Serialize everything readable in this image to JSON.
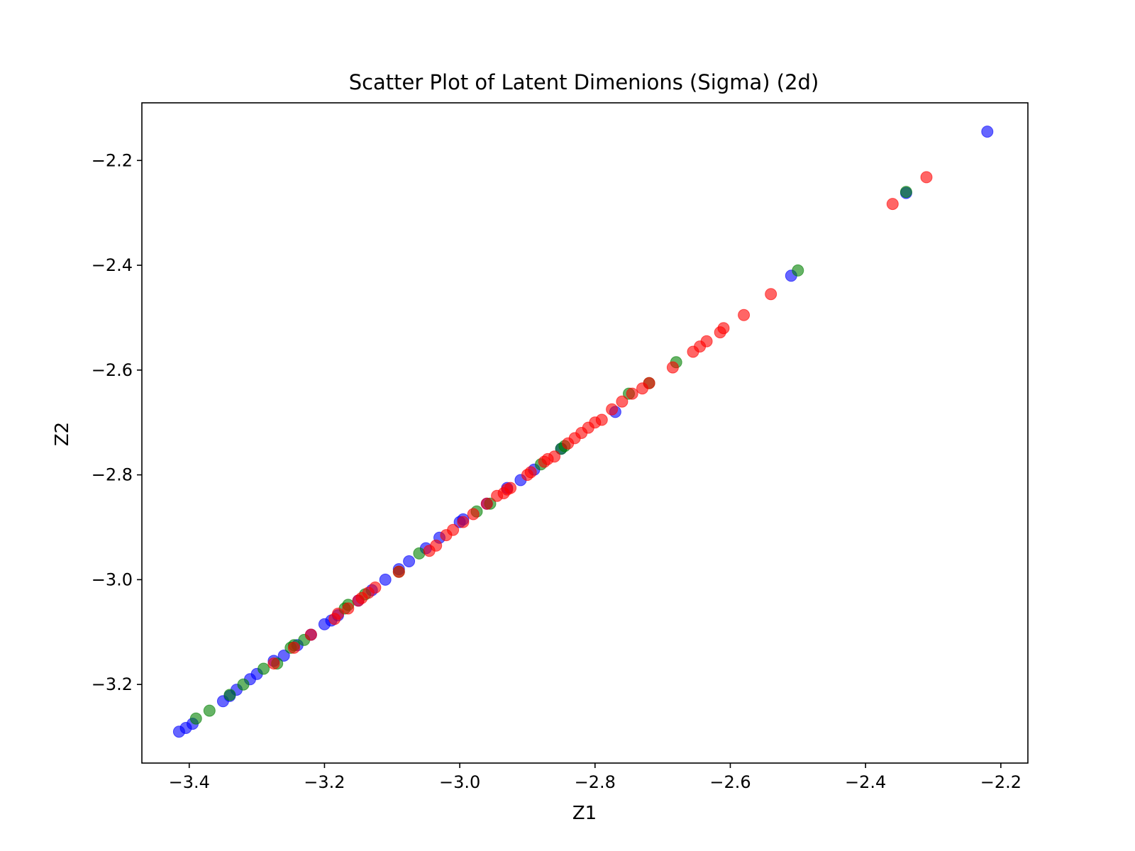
{
  "chart_data": {
    "type": "scatter",
    "title": "Scatter Plot of Latent Dimenions (Sigma) (2d)",
    "xlabel": "Z1",
    "ylabel": "Z2",
    "xlim": [
      -3.47,
      -2.16
    ],
    "ylim": [
      -3.35,
      -2.09
    ],
    "xticks": [
      -3.4,
      -3.2,
      -3.0,
      -2.8,
      -2.6,
      -2.4,
      -2.2
    ],
    "xtick_labels": [
      "−3.4",
      "−3.2",
      "−3.0",
      "−2.8",
      "−2.6",
      "−2.4",
      "−2.2"
    ],
    "yticks": [
      -2.2,
      -2.4,
      -2.6,
      -2.8,
      -3.0,
      -3.2
    ],
    "ytick_labels": [
      "−2.2",
      "−2.4",
      "−2.6",
      "−2.8",
      "−3.0",
      "−3.2"
    ],
    "grid": false,
    "legend": "none",
    "marker_opacity": 0.6,
    "series": [
      {
        "color": "#0000ff",
        "points": [
          [
            -3.415,
            -3.29
          ],
          [
            -3.405,
            -3.283
          ],
          [
            -3.395,
            -3.275
          ],
          [
            -3.35,
            -3.232
          ],
          [
            -3.34,
            -3.222
          ],
          [
            -3.33,
            -3.21
          ],
          [
            -3.31,
            -3.19
          ],
          [
            -3.3,
            -3.18
          ],
          [
            -3.275,
            -3.155
          ],
          [
            -3.26,
            -3.145
          ],
          [
            -3.24,
            -3.125
          ],
          [
            -3.22,
            -3.105
          ],
          [
            -3.2,
            -3.085
          ],
          [
            -3.19,
            -3.078
          ],
          [
            -3.18,
            -3.068
          ],
          [
            -3.15,
            -3.04
          ],
          [
            -3.13,
            -3.02
          ],
          [
            -3.11,
            -3.0
          ],
          [
            -3.09,
            -2.98
          ],
          [
            -3.075,
            -2.965
          ],
          [
            -3.05,
            -2.94
          ],
          [
            -3.03,
            -2.92
          ],
          [
            -3.0,
            -2.89
          ],
          [
            -2.995,
            -2.885
          ],
          [
            -2.96,
            -2.855
          ],
          [
            -2.93,
            -2.825
          ],
          [
            -2.91,
            -2.81
          ],
          [
            -2.89,
            -2.79
          ],
          [
            -2.85,
            -2.75
          ],
          [
            -2.77,
            -2.68
          ],
          [
            -2.51,
            -2.42
          ],
          [
            -2.34,
            -2.262
          ],
          [
            -2.22,
            -2.145
          ]
        ]
      },
      {
        "color": "#008000",
        "points": [
          [
            -3.39,
            -3.265
          ],
          [
            -3.37,
            -3.25
          ],
          [
            -3.34,
            -3.22
          ],
          [
            -3.32,
            -3.2
          ],
          [
            -3.29,
            -3.17
          ],
          [
            -3.27,
            -3.16
          ],
          [
            -3.25,
            -3.13
          ],
          [
            -3.245,
            -3.125
          ],
          [
            -3.23,
            -3.115
          ],
          [
            -3.17,
            -3.055
          ],
          [
            -3.165,
            -3.048
          ],
          [
            -3.14,
            -3.028
          ],
          [
            -3.09,
            -2.985
          ],
          [
            -3.06,
            -2.95
          ],
          [
            -2.975,
            -2.87
          ],
          [
            -2.955,
            -2.855
          ],
          [
            -2.88,
            -2.78
          ],
          [
            -2.85,
            -2.75
          ],
          [
            -2.845,
            -2.745
          ],
          [
            -2.75,
            -2.645
          ],
          [
            -2.72,
            -2.625
          ],
          [
            -2.68,
            -2.585
          ],
          [
            -2.5,
            -2.41
          ],
          [
            -2.34,
            -2.26
          ]
        ]
      },
      {
        "color": "#ff0000",
        "points": [
          [
            -3.275,
            -3.16
          ],
          [
            -3.245,
            -3.13
          ],
          [
            -3.22,
            -3.105
          ],
          [
            -3.185,
            -3.075
          ],
          [
            -3.18,
            -3.065
          ],
          [
            -3.165,
            -3.055
          ],
          [
            -3.15,
            -3.04
          ],
          [
            -3.145,
            -3.035
          ],
          [
            -3.135,
            -3.025
          ],
          [
            -3.125,
            -3.015
          ],
          [
            -3.09,
            -2.985
          ],
          [
            -3.045,
            -2.945
          ],
          [
            -3.035,
            -2.935
          ],
          [
            -3.02,
            -2.915
          ],
          [
            -3.01,
            -2.905
          ],
          [
            -2.995,
            -2.89
          ],
          [
            -2.98,
            -2.875
          ],
          [
            -2.96,
            -2.855
          ],
          [
            -2.945,
            -2.84
          ],
          [
            -2.935,
            -2.835
          ],
          [
            -2.93,
            -2.828
          ],
          [
            -2.925,
            -2.825
          ],
          [
            -2.9,
            -2.8
          ],
          [
            -2.895,
            -2.795
          ],
          [
            -2.875,
            -2.775
          ],
          [
            -2.87,
            -2.77
          ],
          [
            -2.86,
            -2.765
          ],
          [
            -2.84,
            -2.74
          ],
          [
            -2.83,
            -2.73
          ],
          [
            -2.82,
            -2.72
          ],
          [
            -2.81,
            -2.71
          ],
          [
            -2.8,
            -2.7
          ],
          [
            -2.79,
            -2.695
          ],
          [
            -2.775,
            -2.675
          ],
          [
            -2.76,
            -2.66
          ],
          [
            -2.745,
            -2.645
          ],
          [
            -2.73,
            -2.635
          ],
          [
            -2.72,
            -2.625
          ],
          [
            -2.685,
            -2.595
          ],
          [
            -2.655,
            -2.565
          ],
          [
            -2.645,
            -2.555
          ],
          [
            -2.635,
            -2.545
          ],
          [
            -2.615,
            -2.528
          ],
          [
            -2.61,
            -2.52
          ],
          [
            -2.58,
            -2.495
          ],
          [
            -2.54,
            -2.455
          ],
          [
            -2.36,
            -2.283
          ],
          [
            -2.31,
            -2.232
          ]
        ]
      }
    ]
  }
}
